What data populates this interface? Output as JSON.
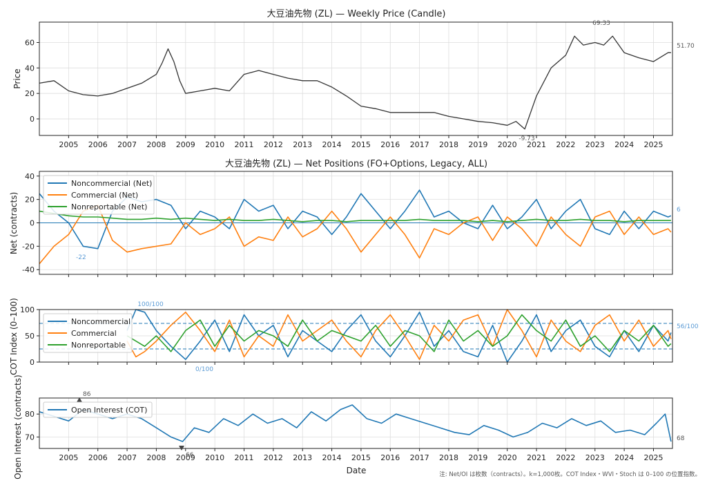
{
  "years": [
    "2005",
    "2006",
    "2007",
    "2008",
    "2009",
    "2010",
    "2011",
    "2012",
    "2013",
    "2014",
    "2015",
    "2016",
    "2017",
    "2018",
    "2019",
    "2020",
    "2021",
    "2022",
    "2023",
    "2024",
    "2025"
  ],
  "xlabel": "Date",
  "footnote": "注: Net/OI は枚数（contracts）。k=1,000枚。COT Index・WVI・Stoch は 0–100 の位置指数。",
  "panels": {
    "price": {
      "title": "大豆油先物 (ZL) — Weekly Price (Candle)",
      "ylabel": "Price",
      "yticks": [
        "0",
        "20",
        "40",
        "60"
      ],
      "annotations": {
        "max": "69.33",
        "min": "-9.73",
        "last": "51.70"
      }
    },
    "net": {
      "title": "大豆油先物 (ZL) — Net Positions (FO+Options, Legacy, ALL)",
      "ylabel": "Net (contracts)",
      "yticks": [
        "-40",
        "-20",
        "0",
        "20",
        "40"
      ],
      "legend": [
        "Noncommercial (Net)",
        "Commercial (Net)",
        "Nonreportable (Net)"
      ],
      "annotations": {
        "min": "-22",
        "last": "6"
      }
    },
    "cot": {
      "ylabel": "COT Index (0–100)",
      "yticks": [
        "0",
        "50",
        "100"
      ],
      "legend": [
        "Noncommercial",
        "Commercial",
        "Nonreportable"
      ],
      "annotations": {
        "max": "100/100",
        "min": "0/100",
        "last": "56/100"
      }
    },
    "oi": {
      "ylabel": "Open Interest (contracts)",
      "yticks": [
        "70",
        "80"
      ],
      "legend": [
        "Open Interest (COT)"
      ],
      "annotations": {
        "max": "86",
        "min": "66",
        "last": "68"
      }
    }
  },
  "colors": {
    "price": "#333333",
    "noncommercial": "#1f77b4",
    "commercial": "#ff7f0e",
    "nonreportable": "#2ca02c",
    "oi": "#1f77b4",
    "annot": "#5b9bd5",
    "grid": "#dddddd"
  },
  "chart_data": [
    {
      "type": "line",
      "title": "大豆油先物 (ZL) — Weekly Price (Candle)",
      "ylabel": "Price",
      "ylim": [
        -13,
        76
      ],
      "x": [
        2004.0,
        2004.5,
        2005.0,
        2005.5,
        2006.0,
        2006.5,
        2007.0,
        2007.5,
        2008.0,
        2008.2,
        2008.4,
        2008.6,
        2008.8,
        2009.0,
        2009.5,
        2010.0,
        2010.5,
        2011.0,
        2011.5,
        2012.0,
        2012.5,
        2013.0,
        2013.5,
        2014.0,
        2014.5,
        2015.0,
        2015.5,
        2016.0,
        2016.5,
        2017.0,
        2017.5,
        2018.0,
        2018.5,
        2019.0,
        2019.5,
        2020.0,
        2020.3,
        2020.6,
        2021.0,
        2021.5,
        2022.0,
        2022.3,
        2022.6,
        2023.0,
        2023.3,
        2023.6,
        2024.0,
        2024.5,
        2025.0,
        2025.5,
        2025.6
      ],
      "series": [
        {
          "values": [
            28,
            30,
            22,
            19,
            18,
            20,
            24,
            28,
            35,
            44,
            55,
            45,
            30,
            20,
            22,
            24,
            22,
            35,
            38,
            35,
            32,
            30,
            30,
            25,
            18,
            10,
            8,
            5,
            5,
            5,
            5,
            2,
            0,
            -2,
            -3,
            -5,
            -2,
            -8,
            18,
            40,
            50,
            65,
            58,
            60,
            58,
            65,
            52,
            48,
            45,
            52,
            52
          ]
        }
      ]
    },
    {
      "type": "line",
      "title": "大豆油先物 (ZL) — Net Positions (FO+Options, Legacy, ALL)",
      "ylabel": "Net (contracts)",
      "ylim": [
        -44,
        44
      ],
      "x": [
        2004.0,
        2004.5,
        2005.0,
        2005.5,
        2006.0,
        2006.5,
        2007.0,
        2007.5,
        2008.0,
        2008.5,
        2009.0,
        2009.5,
        2010.0,
        2010.5,
        2011.0,
        2011.5,
        2012.0,
        2012.5,
        2013.0,
        2013.5,
        2014.0,
        2014.5,
        2015.0,
        2015.5,
        2016.0,
        2016.5,
        2017.0,
        2017.5,
        2018.0,
        2018.5,
        2019.0,
        2019.5,
        2020.0,
        2020.5,
        2021.0,
        2021.5,
        2022.0,
        2022.5,
        2023.0,
        2023.5,
        2024.0,
        2024.5,
        2025.0,
        2025.5,
        2025.6
      ],
      "series": [
        {
          "name": "Noncommercial (Net)",
          "values": [
            25,
            10,
            0,
            -20,
            -22,
            10,
            22,
            18,
            20,
            15,
            -5,
            10,
            5,
            -5,
            20,
            10,
            15,
            -5,
            10,
            5,
            -10,
            5,
            25,
            10,
            -5,
            10,
            28,
            5,
            10,
            0,
            -5,
            15,
            -5,
            5,
            20,
            -5,
            10,
            20,
            -5,
            -10,
            10,
            -5,
            10,
            5,
            6
          ]
        },
        {
          "name": "Commercial (Net)",
          "values": [
            -35,
            -20,
            -10,
            10,
            15,
            -15,
            -25,
            -22,
            -20,
            -18,
            0,
            -10,
            -5,
            5,
            -20,
            -12,
            -15,
            5,
            -12,
            -5,
            10,
            -5,
            -25,
            -10,
            5,
            -10,
            -30,
            -5,
            -10,
            0,
            5,
            -15,
            5,
            -5,
            -20,
            5,
            -10,
            -20,
            5,
            10,
            -10,
            5,
            -10,
            -5,
            -8
          ]
        },
        {
          "name": "Nonreportable (Net)",
          "values": [
            10,
            8,
            6,
            5,
            5,
            4,
            3,
            3,
            4,
            3,
            4,
            3,
            2,
            3,
            2,
            2,
            3,
            2,
            1,
            2,
            2,
            1,
            2,
            2,
            2,
            2,
            3,
            2,
            2,
            2,
            1,
            2,
            1,
            2,
            3,
            2,
            2,
            3,
            2,
            2,
            1,
            2,
            2,
            2,
            2
          ]
        }
      ]
    },
    {
      "type": "line",
      "ylabel": "COT Index (0–100)",
      "ylim": [
        0,
        100
      ],
      "x": [
        2007.0,
        2007.3,
        2007.6,
        2008.0,
        2008.5,
        2009.0,
        2009.5,
        2010.0,
        2010.5,
        2011.0,
        2011.5,
        2012.0,
        2012.5,
        2013.0,
        2013.5,
        2014.0,
        2014.5,
        2015.0,
        2015.5,
        2016.0,
        2016.5,
        2017.0,
        2017.5,
        2018.0,
        2018.5,
        2019.0,
        2019.5,
        2020.0,
        2020.5,
        2021.0,
        2021.5,
        2022.0,
        2022.5,
        2023.0,
        2023.5,
        2024.0,
        2024.5,
        2025.0,
        2025.5,
        2025.6
      ],
      "series": [
        {
          "name": "Noncommercial",
          "values": [
            60,
            100,
            95,
            60,
            30,
            5,
            40,
            80,
            20,
            90,
            50,
            70,
            10,
            60,
            40,
            20,
            60,
            90,
            40,
            10,
            50,
            95,
            30,
            60,
            20,
            10,
            70,
            0,
            40,
            90,
            20,
            60,
            80,
            30,
            10,
            60,
            20,
            70,
            40,
            56
          ]
        },
        {
          "name": "Commercial",
          "values": [
            40,
            10,
            20,
            40,
            70,
            95,
            60,
            20,
            80,
            10,
            50,
            30,
            90,
            40,
            60,
            80,
            40,
            10,
            60,
            90,
            50,
            5,
            70,
            40,
            80,
            90,
            30,
            100,
            60,
            10,
            80,
            40,
            20,
            70,
            90,
            40,
            80,
            30,
            60,
            44
          ]
        },
        {
          "name": "Nonreportable",
          "values": [
            50,
            40,
            30,
            50,
            20,
            60,
            80,
            30,
            70,
            40,
            60,
            50,
            30,
            80,
            40,
            60,
            50,
            40,
            70,
            30,
            60,
            50,
            20,
            80,
            40,
            60,
            30,
            50,
            90,
            60,
            40,
            80,
            30,
            50,
            20,
            60,
            40,
            70,
            30,
            35
          ]
        }
      ]
    },
    {
      "type": "line",
      "ylabel": "Open Interest (contracts)",
      "ylim": [
        65,
        87
      ],
      "x": [
        2004.0,
        2004.5,
        2005.0,
        2005.5,
        2006.0,
        2006.5,
        2007.0,
        2007.5,
        2008.0,
        2008.5,
        2008.9,
        2009.3,
        2009.8,
        2010.3,
        2010.8,
        2011.3,
        2011.8,
        2012.3,
        2012.8,
        2013.3,
        2013.8,
        2014.3,
        2014.7,
        2015.2,
        2015.7,
        2016.2,
        2016.7,
        2017.2,
        2017.7,
        2018.2,
        2018.7,
        2019.2,
        2019.7,
        2020.2,
        2020.7,
        2021.2,
        2021.7,
        2022.2,
        2022.7,
        2023.2,
        2023.7,
        2024.2,
        2024.7,
        2025.1,
        2025.4,
        2025.6
      ],
      "series": [
        {
          "name": "Open Interest (COT)",
          "values": [
            81,
            79,
            77,
            82,
            80,
            78,
            80,
            78,
            74,
            70,
            68,
            74,
            72,
            78,
            75,
            80,
            76,
            78,
            74,
            81,
            77,
            82,
            84,
            78,
            76,
            80,
            78,
            76,
            74,
            72,
            71,
            75,
            73,
            70,
            72,
            76,
            74,
            78,
            75,
            77,
            72,
            73,
            71,
            76,
            80,
            68
          ]
        }
      ]
    }
  ]
}
